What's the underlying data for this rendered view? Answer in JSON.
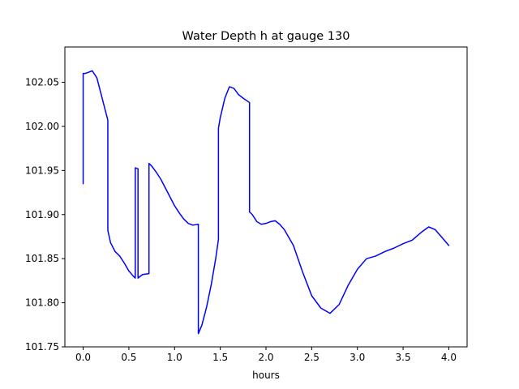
{
  "chart_data": {
    "type": "line",
    "title": "Water Depth h at gauge 130",
    "xlabel": "hours",
    "ylabel": "",
    "xlim": [
      -0.2,
      4.2
    ],
    "ylim": [
      101.75,
      102.09
    ],
    "grid": false,
    "x_ticks": [
      0.0,
      0.5,
      1.0,
      1.5,
      2.0,
      2.5,
      3.0,
      3.5,
      4.0
    ],
    "x_tick_labels": [
      "0.0",
      "0.5",
      "1.0",
      "1.5",
      "2.0",
      "2.5",
      "3.0",
      "3.5",
      "4.0"
    ],
    "y_ticks": [
      101.75,
      101.8,
      101.85,
      101.9,
      101.95,
      102.0,
      102.05
    ],
    "y_tick_labels": [
      "101.75",
      "101.80",
      "101.85",
      "101.90",
      "101.95",
      "102.00",
      "102.05"
    ],
    "series": [
      {
        "color": "#0000ff",
        "x": [
          0.0,
          0.0,
          0.02,
          0.05,
          0.1,
          0.15,
          0.2,
          0.27,
          0.27,
          0.3,
          0.35,
          0.4,
          0.45,
          0.5,
          0.55,
          0.57,
          0.57,
          0.6,
          0.6,
          0.65,
          0.72,
          0.72,
          0.75,
          0.8,
          0.85,
          0.9,
          0.95,
          1.0,
          1.05,
          1.1,
          1.15,
          1.2,
          1.26,
          1.26,
          1.3,
          1.35,
          1.4,
          1.45,
          1.48,
          1.48,
          1.5,
          1.55,
          1.6,
          1.65,
          1.7,
          1.75,
          1.82,
          1.82,
          1.85,
          1.9,
          1.95,
          2.0,
          2.05,
          2.1,
          2.15,
          2.2,
          2.3,
          2.4,
          2.5,
          2.6,
          2.7,
          2.8,
          2.9,
          3.0,
          3.1,
          3.2,
          3.3,
          3.4,
          3.5,
          3.6,
          3.7,
          3.78,
          3.85,
          3.9,
          4.0
        ],
        "y": [
          101.935,
          102.06,
          102.06,
          102.061,
          102.063,
          102.055,
          102.035,
          102.007,
          101.882,
          101.868,
          101.858,
          101.853,
          101.845,
          101.836,
          101.83,
          101.828,
          101.953,
          101.952,
          101.828,
          101.832,
          101.833,
          101.958,
          101.955,
          101.948,
          101.94,
          101.93,
          101.92,
          101.91,
          101.902,
          101.895,
          101.89,
          101.888,
          101.889,
          101.765,
          101.775,
          101.795,
          101.82,
          101.85,
          101.872,
          101.998,
          102.01,
          102.032,
          102.045,
          102.043,
          102.036,
          102.032,
          102.027,
          101.903,
          101.9,
          101.892,
          101.889,
          101.89,
          101.892,
          101.893,
          101.889,
          101.883,
          101.865,
          101.835,
          101.808,
          101.794,
          101.788,
          101.798,
          101.82,
          101.838,
          101.85,
          101.853,
          101.858,
          101.862,
          101.867,
          101.871,
          101.88,
          101.886,
          101.883,
          101.877,
          101.865
        ]
      }
    ]
  }
}
